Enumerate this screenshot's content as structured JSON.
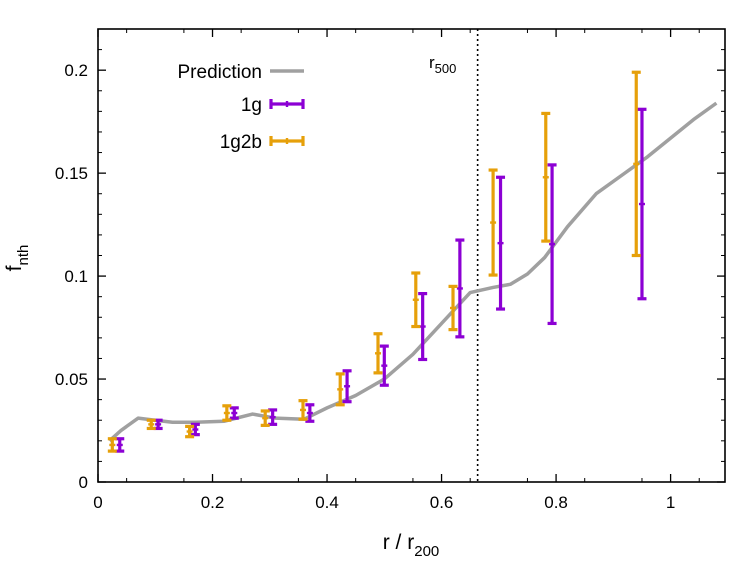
{
  "chart_data": {
    "type": "line",
    "xlabel": {
      "main": "r / r",
      "sub": "200"
    },
    "ylabel": {
      "main": "f",
      "sub": "nth"
    },
    "xlim": [
      0,
      1.095
    ],
    "ylim": [
      0,
      0.22
    ],
    "xticks": [
      0,
      0.2,
      0.4,
      0.6,
      0.8,
      1
    ],
    "xtick_labels": [
      "0",
      "0.2",
      "0.4",
      "0.6",
      "0.8",
      "1"
    ],
    "yticks": [
      0,
      0.05,
      0.1,
      0.15,
      0.2
    ],
    "ytick_labels": [
      "0",
      "0.05",
      "0.1",
      "0.15",
      "0.2"
    ],
    "legend_position": "top-left",
    "vline": {
      "x": 0.663,
      "label_main": "r",
      "label_sub": "500",
      "style": "dotted"
    },
    "series": [
      {
        "name": "Prediction",
        "kind": "line",
        "color": "#a0a0a0",
        "x": [
          0.02,
          0.04,
          0.07,
          0.1,
          0.13,
          0.17,
          0.22,
          0.27,
          0.31,
          0.36,
          0.4,
          0.45,
          0.5,
          0.55,
          0.6,
          0.65,
          0.69,
          0.72,
          0.75,
          0.78,
          0.82,
          0.87,
          0.92,
          0.96,
          1.0,
          1.04,
          1.08
        ],
        "y": [
          0.02,
          0.025,
          0.031,
          0.03,
          0.029,
          0.029,
          0.0295,
          0.033,
          0.031,
          0.0305,
          0.036,
          0.042,
          0.05,
          0.062,
          0.077,
          0.092,
          0.0945,
          0.096,
          0.101,
          0.109,
          0.124,
          0.14,
          0.15,
          0.158,
          0.167,
          0.176,
          0.184
        ]
      },
      {
        "name": "1g",
        "kind": "errorbar",
        "color": "#8c00d4",
        "points": [
          {
            "x": 0.038,
            "y": 0.018,
            "err": 0.003
          },
          {
            "x": 0.105,
            "y": 0.028,
            "err": 0.002
          },
          {
            "x": 0.17,
            "y": 0.0255,
            "err": 0.0025
          },
          {
            "x": 0.238,
            "y": 0.0335,
            "err": 0.0025
          },
          {
            "x": 0.305,
            "y": 0.0315,
            "err": 0.0035
          },
          {
            "x": 0.37,
            "y": 0.0335,
            "err": 0.004
          },
          {
            "x": 0.435,
            "y": 0.0465,
            "err": 0.0075
          },
          {
            "x": 0.5,
            "y": 0.0565,
            "err": 0.0095
          },
          {
            "x": 0.567,
            "y": 0.0755,
            "err": 0.016
          },
          {
            "x": 0.632,
            "y": 0.094,
            "err": 0.0235
          },
          {
            "x": 0.703,
            "y": 0.116,
            "err": 0.032
          },
          {
            "x": 0.793,
            "y": 0.1155,
            "err": 0.0385
          },
          {
            "x": 0.95,
            "y": 0.135,
            "err": 0.046
          }
        ]
      },
      {
        "name": "1g2b",
        "kind": "errorbar",
        "color": "#e6a00a",
        "points": [
          {
            "x": 0.025,
            "y": 0.018,
            "err": 0.003
          },
          {
            "x": 0.093,
            "y": 0.028,
            "err": 0.002
          },
          {
            "x": 0.16,
            "y": 0.0245,
            "err": 0.0025
          },
          {
            "x": 0.225,
            "y": 0.0335,
            "err": 0.0035
          },
          {
            "x": 0.292,
            "y": 0.031,
            "err": 0.0035
          },
          {
            "x": 0.358,
            "y": 0.035,
            "err": 0.0045
          },
          {
            "x": 0.423,
            "y": 0.045,
            "err": 0.0075
          },
          {
            "x": 0.489,
            "y": 0.0625,
            "err": 0.0095
          },
          {
            "x": 0.555,
            "y": 0.0885,
            "err": 0.013
          },
          {
            "x": 0.62,
            "y": 0.0845,
            "err": 0.0105
          },
          {
            "x": 0.69,
            "y": 0.126,
            "err": 0.0255
          },
          {
            "x": 0.782,
            "y": 0.148,
            "err": 0.031
          },
          {
            "x": 0.94,
            "y": 0.1545,
            "err": 0.0445
          }
        ]
      }
    ]
  }
}
